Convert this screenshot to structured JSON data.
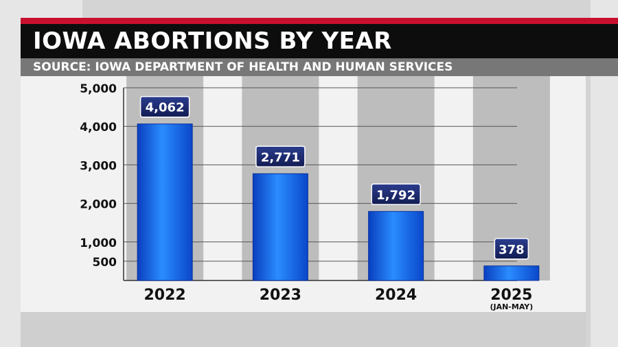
{
  "header": {
    "title": "IOWA ABORTIONS BY YEAR",
    "source": "SOURCE:  IOWA DEPARTMENT OF HEALTH AND HUMAN SERVICES"
  },
  "colors": {
    "accent_red": "#c8102e",
    "title_bg": "#0d0d0d",
    "subtitle_bg": "#777777",
    "bar_blue": "#1f7af0",
    "label_bg": "#1a2a6c"
  },
  "chart_data": {
    "type": "bar",
    "categories": [
      "2022",
      "2023",
      "2024",
      "2025"
    ],
    "category_notes": [
      "",
      "",
      "",
      "(JAN-MAY)"
    ],
    "values": [
      4062,
      2771,
      1792,
      378
    ],
    "value_labels": [
      "4,062",
      "2,771",
      "1,792",
      "378"
    ],
    "yticks": [
      500,
      1000,
      2000,
      3000,
      4000,
      5000
    ],
    "ytick_labels": [
      "500",
      "1,000",
      "2,000",
      "3,000",
      "4,000",
      "5,000"
    ],
    "ylim": [
      0,
      5000
    ],
    "grid": true,
    "xlabel": "",
    "ylabel": ""
  }
}
